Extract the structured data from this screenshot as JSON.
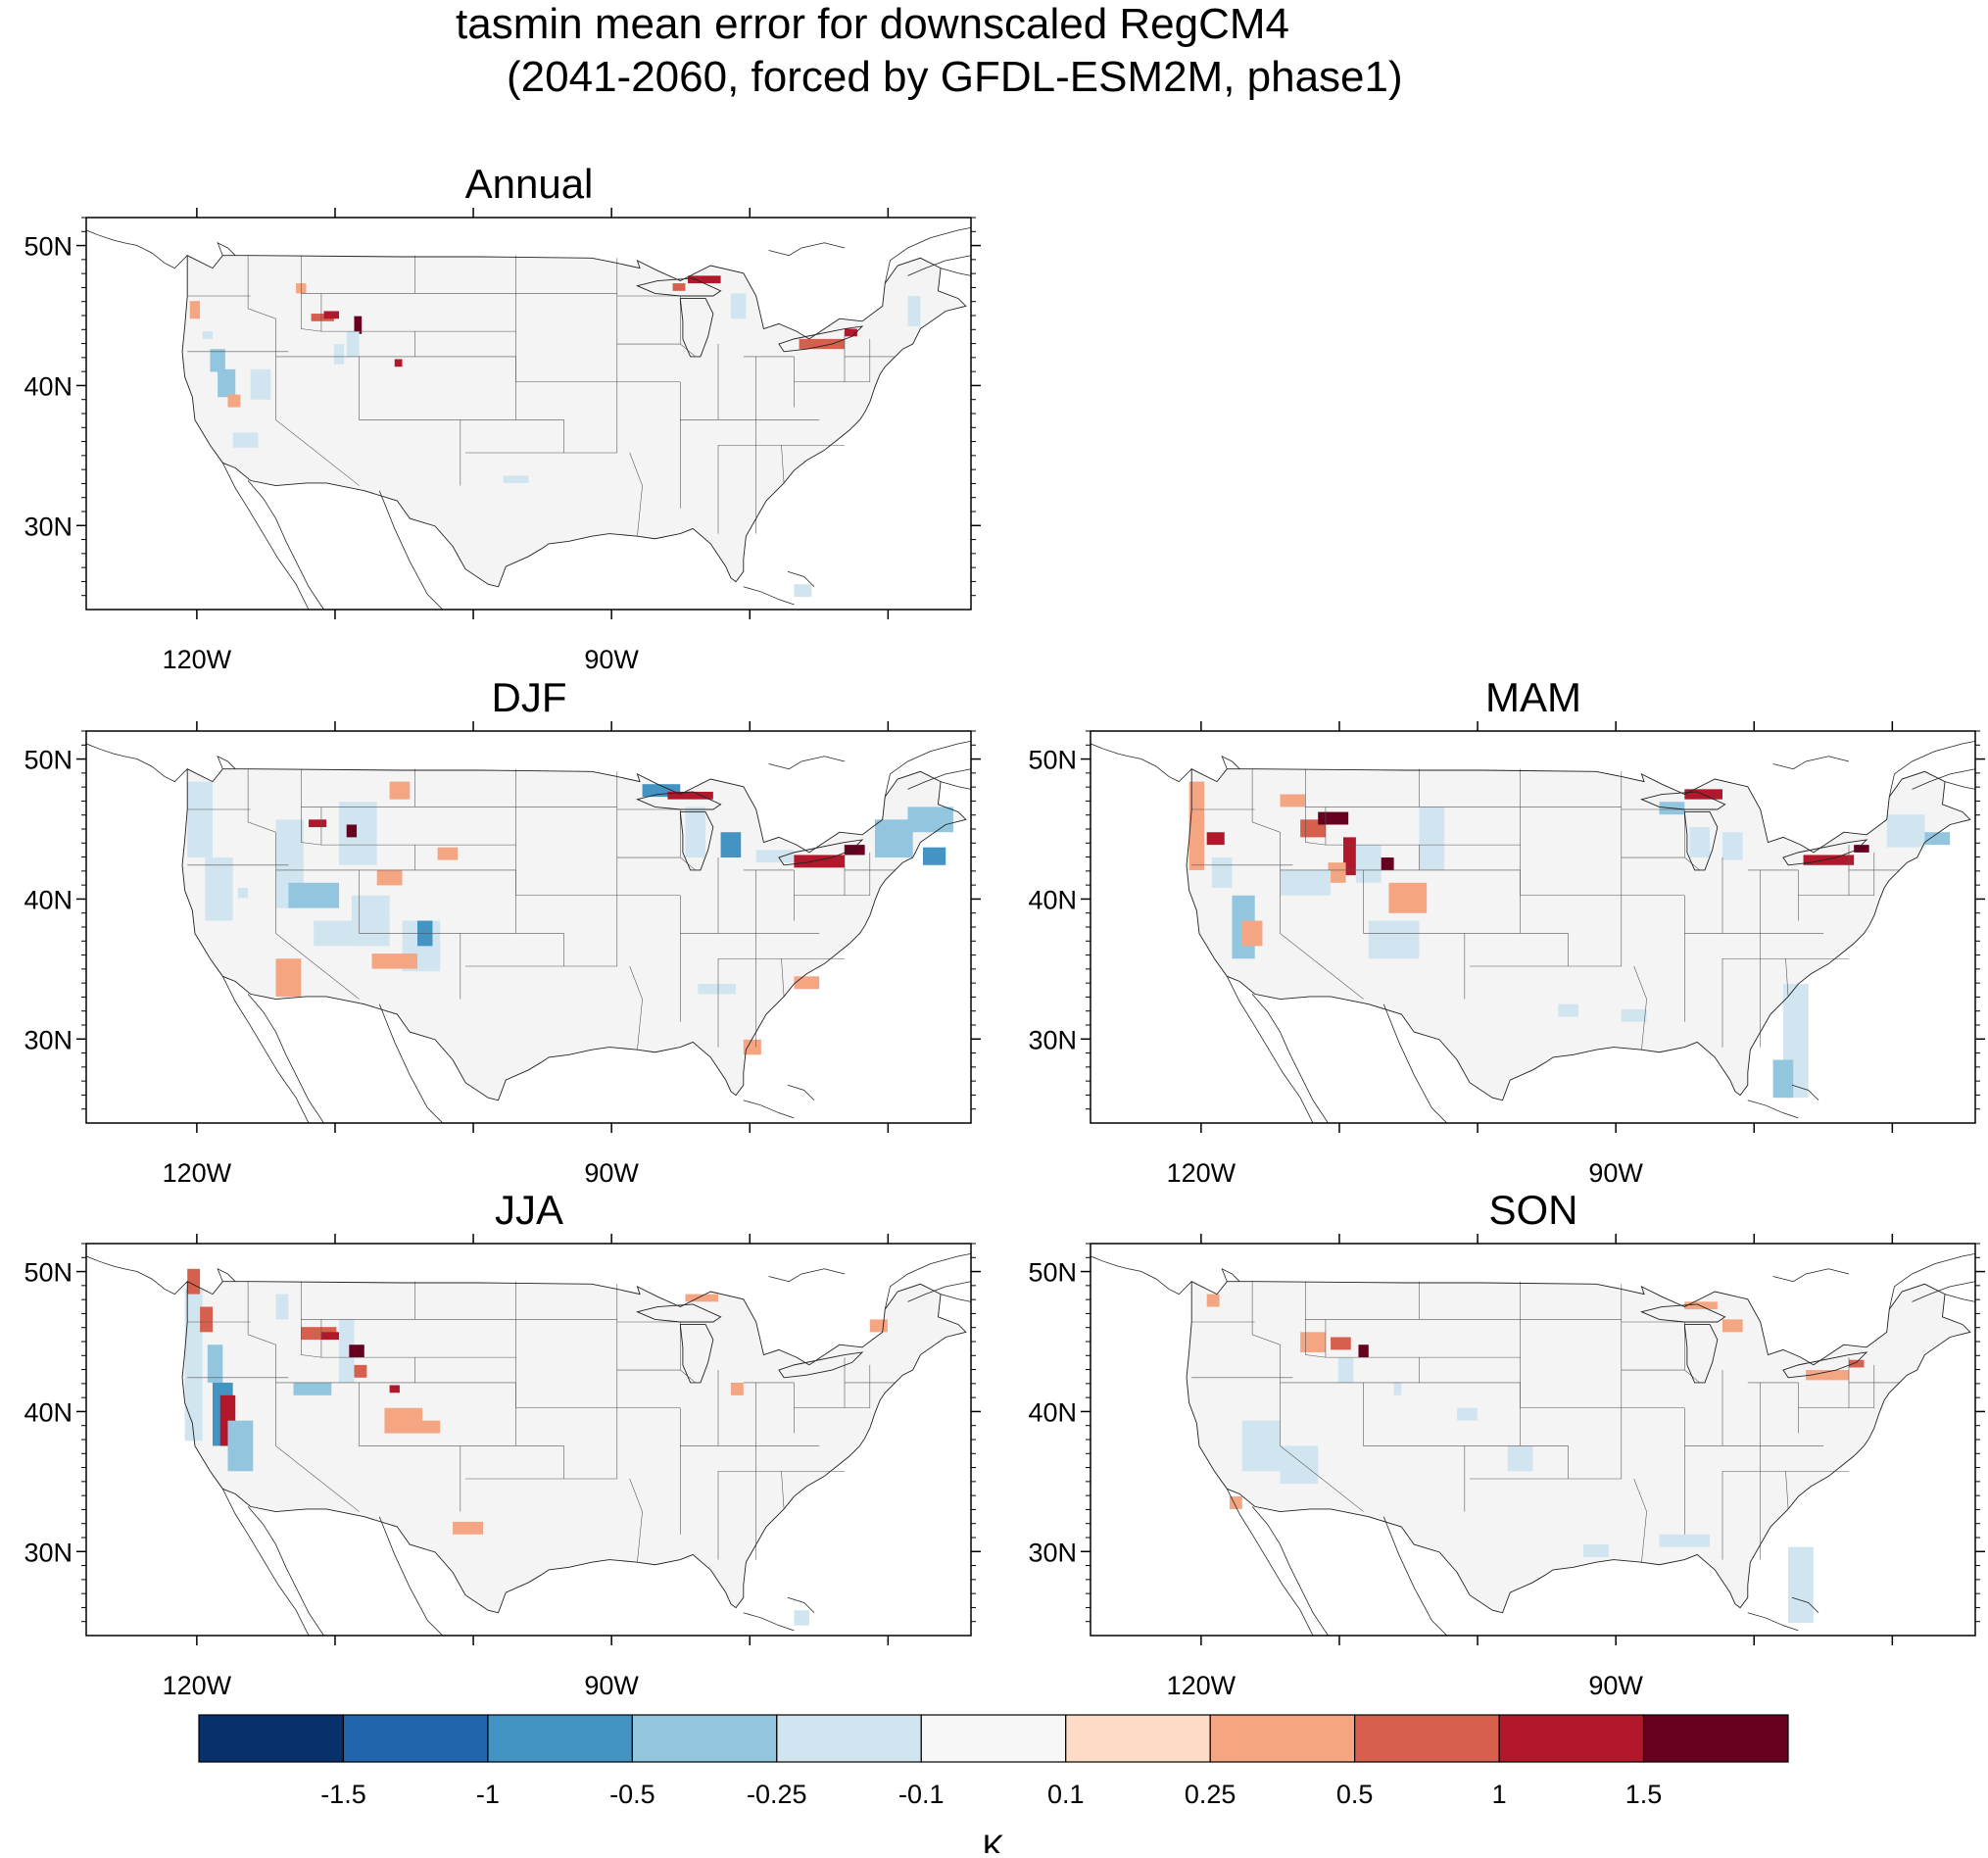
{
  "title": {
    "line1": "tasmin mean error for downscaled RegCM4",
    "line2": "(2041-2060, forced by GFDL-ESM2M, phase1)"
  },
  "lat_labels": [
    "50N",
    "40N",
    "30N"
  ],
  "lon_labels": [
    "120W",
    "90W"
  ],
  "panels": [
    {
      "id": "annual",
      "title": "Annual"
    },
    {
      "id": "djf",
      "title": "DJF"
    },
    {
      "id": "mam",
      "title": "MAM"
    },
    {
      "id": "jja",
      "title": "JJA"
    },
    {
      "id": "son",
      "title": "SON"
    }
  ],
  "map_extent": {
    "lon_min": -128,
    "lon_max": -64,
    "lat_min": 24,
    "lat_max": 52
  },
  "colorbar": {
    "unit": "K",
    "tick_labels": [
      "-1.5",
      "-1",
      "-0.5",
      "-0.25",
      "-0.1",
      "0.1",
      "0.25",
      "0.5",
      "1",
      "1.5"
    ],
    "colors": [
      "#08306b",
      "#2166ac",
      "#4393c3",
      "#92c5de",
      "#d1e5f0",
      "#f7f7f7",
      "#fddbc7",
      "#f4a582",
      "#d6604d",
      "#b2182b",
      "#67001f"
    ]
  },
  "colors": {
    "land": "#f4f4f4",
    "outline": "#222222",
    "state_lines": "#555555"
  }
}
